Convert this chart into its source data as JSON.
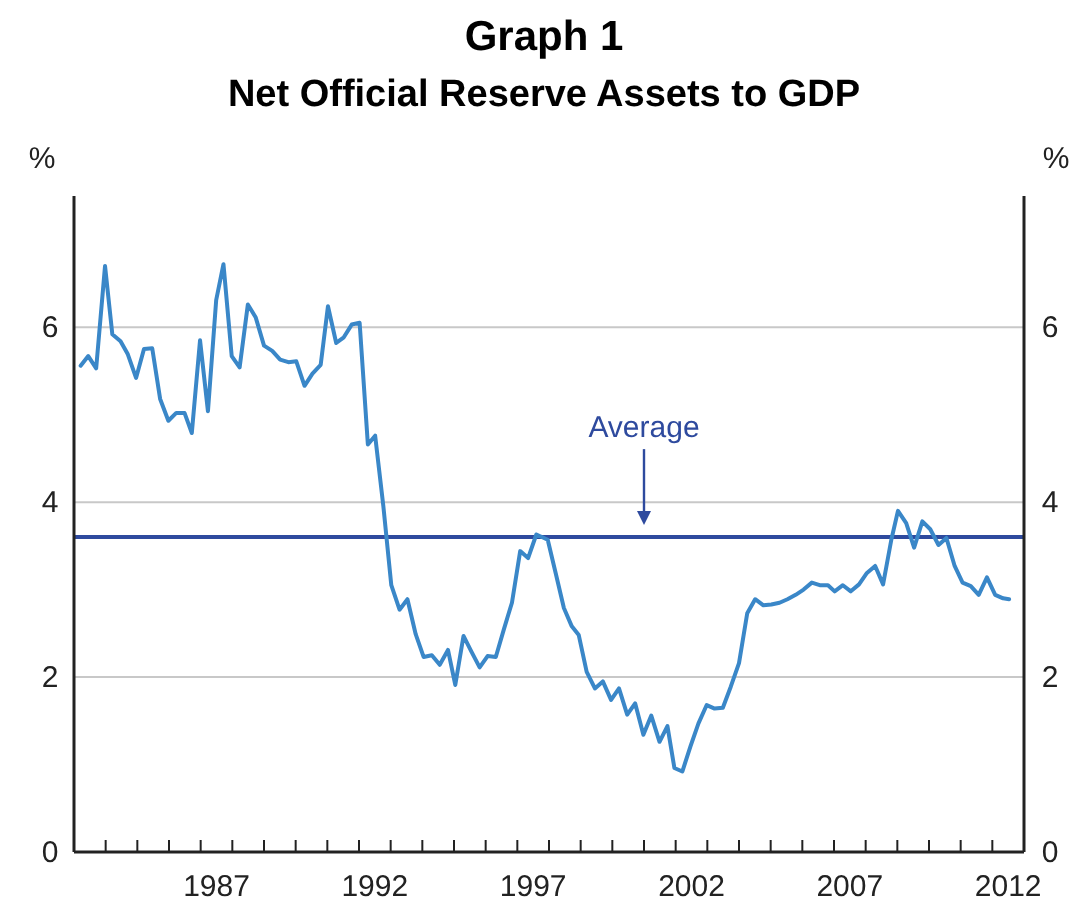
{
  "chart_data": {
    "type": "line",
    "title": "Graph 1",
    "subtitle": "Net Official Reserve Assets to GDP",
    "ylabel": "%",
    "y2label": "%",
    "x": [
      1983.21,
      1983.45,
      1983.7,
      1983.98,
      1984.21,
      1984.47,
      1984.7,
      1984.96,
      1985.21,
      1985.47,
      1985.72,
      1985.98,
      1986.23,
      1986.49,
      1986.72,
      1986.98,
      1987.23,
      1987.49,
      1987.72,
      1987.98,
      1988.23,
      1988.49,
      1988.74,
      1989.0,
      1989.26,
      1989.51,
      1989.77,
      1990.02,
      1990.28,
      1990.53,
      1990.79,
      1991.02,
      1991.28,
      1991.51,
      1991.77,
      1992.02,
      1992.28,
      1992.51,
      1992.77,
      1993.02,
      1993.28,
      1993.53,
      1993.79,
      1994.04,
      1994.3,
      1994.55,
      1994.81,
      1995.04,
      1995.3,
      1995.55,
      1995.81,
      1996.06,
      1996.32,
      1996.57,
      1996.83,
      1997.09,
      1997.34,
      1997.6,
      1997.96,
      1998.21,
      1998.47,
      1998.72,
      1998.94,
      1999.19,
      1999.45,
      1999.7,
      1999.96,
      2000.21,
      2000.47,
      2000.72,
      2000.98,
      2001.23,
      2001.49,
      2001.74,
      2001.96,
      2002.21,
      2002.47,
      2002.72,
      2002.98,
      2003.23,
      2003.49,
      2003.74,
      2004.0,
      2004.26,
      2004.51,
      2004.77,
      2005.02,
      2005.28,
      2005.53,
      2005.79,
      2006.04,
      2006.3,
      2006.55,
      2006.81,
      2007.02,
      2007.28,
      2007.53,
      2007.79,
      2008.04,
      2008.3,
      2008.55,
      2008.81,
      2009.02,
      2009.28,
      2009.53,
      2009.79,
      2010.04,
      2010.3,
      2010.55,
      2010.81,
      2011.06,
      2011.32,
      2011.57,
      2011.83,
      2012.09,
      2012.34,
      2012.53
    ],
    "series": [
      {
        "color": "#3a87c8",
        "values": [
          5.56,
          5.67,
          5.53,
          6.7,
          5.92,
          5.84,
          5.69,
          5.42,
          5.75,
          5.76,
          5.18,
          4.93,
          5.02,
          5.02,
          4.79,
          5.85,
          5.04,
          6.31,
          6.72,
          5.67,
          5.54,
          6.26,
          6.11,
          5.79,
          5.73,
          5.63,
          5.6,
          5.61,
          5.33,
          5.47,
          5.57,
          6.24,
          5.82,
          5.88,
          6.03,
          6.05,
          4.66,
          4.76,
          3.95,
          3.05,
          2.77,
          2.89,
          2.49,
          2.23,
          2.25,
          2.14,
          2.31,
          1.91,
          2.47,
          2.29,
          2.11,
          2.24,
          2.23,
          2.54,
          2.85,
          3.44,
          3.36,
          3.63,
          3.57,
          3.19,
          2.79,
          2.58,
          2.48,
          2.06,
          1.87,
          1.95,
          1.74,
          1.87,
          1.57,
          1.7,
          1.34,
          1.56,
          1.26,
          1.44,
          0.96,
          0.92,
          1.21,
          1.47,
          1.68,
          1.64,
          1.65,
          1.89,
          2.16,
          2.73,
          2.89,
          2.82,
          2.83,
          2.85,
          2.89,
          2.94,
          3.0,
          3.08,
          3.05,
          3.05,
          2.98,
          3.05,
          2.98,
          3.06,
          3.19,
          3.27,
          3.06,
          3.57,
          3.9,
          3.76,
          3.48,
          3.78,
          3.69,
          3.51,
          3.59,
          3.27,
          3.08,
          3.04,
          2.94,
          3.14,
          2.94,
          2.9,
          2.89
        ]
      }
    ],
    "xlim": [
      1983,
      2013
    ],
    "xticks": [
      {
        "value": 1984,
        "label": null
      },
      {
        "value": 1985,
        "label": null
      },
      {
        "value": 1986,
        "label": null
      },
      {
        "value": 1987,
        "label": null
      },
      {
        "value": 1987.5,
        "label": "1987"
      },
      {
        "value": 1988,
        "label": null
      },
      {
        "value": 1989,
        "label": null
      },
      {
        "value": 1990,
        "label": null
      },
      {
        "value": 1991,
        "label": null
      },
      {
        "value": 1992,
        "label": null
      },
      {
        "value": 1992.5,
        "label": "1992"
      },
      {
        "value": 1993,
        "label": null
      },
      {
        "value": 1994,
        "label": null
      },
      {
        "value": 1995,
        "label": null
      },
      {
        "value": 1996,
        "label": null
      },
      {
        "value": 1997,
        "label": null
      },
      {
        "value": 1997.5,
        "label": "1997"
      },
      {
        "value": 1998,
        "label": null
      },
      {
        "value": 1999,
        "label": null
      },
      {
        "value": 2000,
        "label": null
      },
      {
        "value": 2001,
        "label": null
      },
      {
        "value": 2002,
        "label": null
      },
      {
        "value": 2002.5,
        "label": "2002"
      },
      {
        "value": 2003,
        "label": null
      },
      {
        "value": 2004,
        "label": null
      },
      {
        "value": 2005,
        "label": null
      },
      {
        "value": 2006,
        "label": null
      },
      {
        "value": 2007,
        "label": null
      },
      {
        "value": 2007.5,
        "label": "2007"
      },
      {
        "value": 2008,
        "label": null
      },
      {
        "value": 2009,
        "label": null
      },
      {
        "value": 2010,
        "label": null
      },
      {
        "value": 2011,
        "label": null
      },
      {
        "value": 2012,
        "label": null
      },
      {
        "value": 2012.5,
        "label": "2012"
      }
    ],
    "ylim": [
      0,
      7.5
    ],
    "yticks": [
      0,
      2,
      4,
      6
    ],
    "y2lim": [
      0,
      7.5
    ],
    "y2ticks": [
      0,
      2,
      4,
      6
    ],
    "grid": "y",
    "marker": "none",
    "line_style": "solid",
    "ref_lines": [
      {
        "axis": "y",
        "value": 3.6,
        "label": "Average",
        "color": "#2e4a9e"
      }
    ]
  }
}
